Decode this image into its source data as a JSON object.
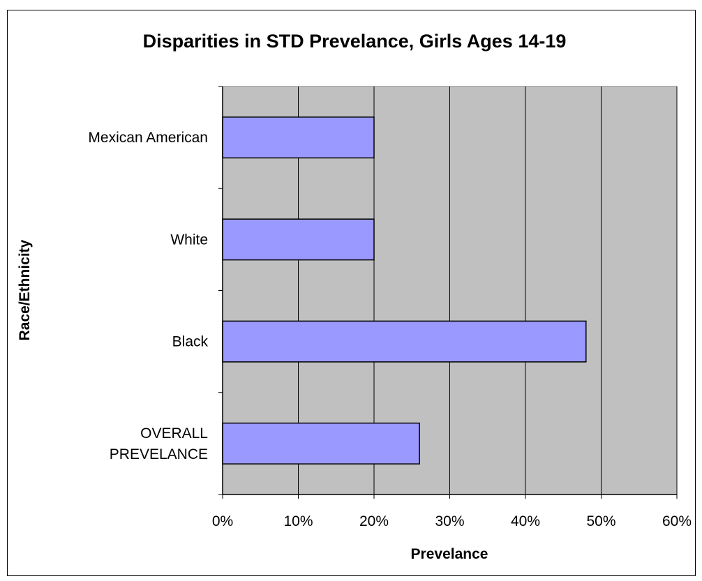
{
  "chart_data": {
    "type": "bar",
    "orientation": "horizontal",
    "title": "Disparities in STD Prevelance, Girls Ages 14-19",
    "xlabel": "Prevelance",
    "ylabel": "Race/Ethnicity",
    "categories": [
      "Mexican American",
      "White",
      "Black",
      "OVERALL PREVELANCE"
    ],
    "values": [
      0.2,
      0.2,
      0.48,
      0.26
    ],
    "xlim": [
      0,
      0.6
    ],
    "x_ticks": [
      "0%",
      "10%",
      "20%",
      "30%",
      "40%",
      "50%",
      "60%"
    ],
    "grid": true,
    "colors": {
      "bar_fill": "#9999ff",
      "bar_stroke": "#000000",
      "plot_background": "#c0c0c0",
      "gridline": "#000000"
    }
  }
}
